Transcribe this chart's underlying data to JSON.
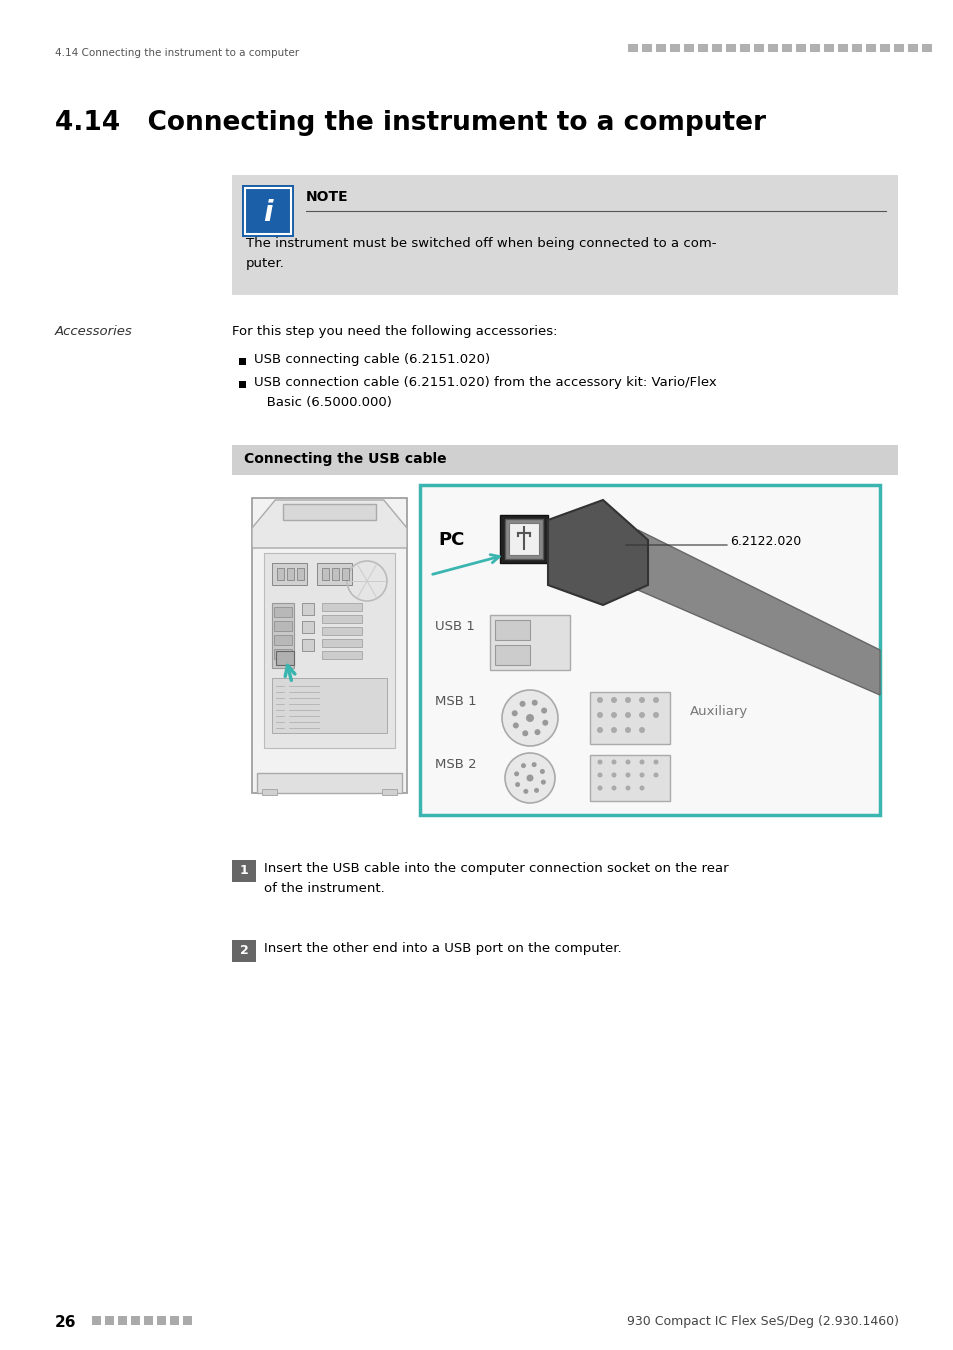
{
  "page_title": "4.14   Connecting the instrument to a computer",
  "header_left": "4.14 Connecting the instrument to a computer",
  "footer_left_num": "26",
  "footer_right": "930 Compact IC Flex SeS/Deg (2.930.1460)",
  "note_title": "NOTE",
  "note_body_line1": "The instrument must be switched off when being connected to a com-",
  "note_body_line2": "puter.",
  "accessories_label": "Accessories",
  "accessories_intro": "For this step you need the following accessories:",
  "bullet1": "USB connecting cable (6.2151.020)",
  "bullet2_line1": "USB connection cable (6.2151.020) from the accessory kit: Vario/Flex",
  "bullet2_line2": "   Basic (6.5000.000)",
  "section_bar_text": "Connecting the USB cable",
  "step1_text_line1": "Insert the USB cable into the computer connection socket on the rear",
  "step1_text_line2": "of the instrument.",
  "step2_text": "Insert the other end into a USB port on the computer.",
  "label_pc": "PC",
  "label_usb1": "USB 1",
  "label_msb1": "MSB 1",
  "label_msb2": "MSB 2",
  "label_auxiliary": "Auxiliary",
  "label_part": "6.2122.020",
  "bg_color": "#ffffff",
  "note_bg": "#d9d9d9",
  "section_bar_bg": "#d0d0d0",
  "icon_blue": "#1a5fa8",
  "teal_color": "#3ab5b0",
  "step_num_bg": "#666666",
  "device_outline": "#aaaaaa",
  "device_fill": "#f0f0f0",
  "img_bg": "#ffffff"
}
